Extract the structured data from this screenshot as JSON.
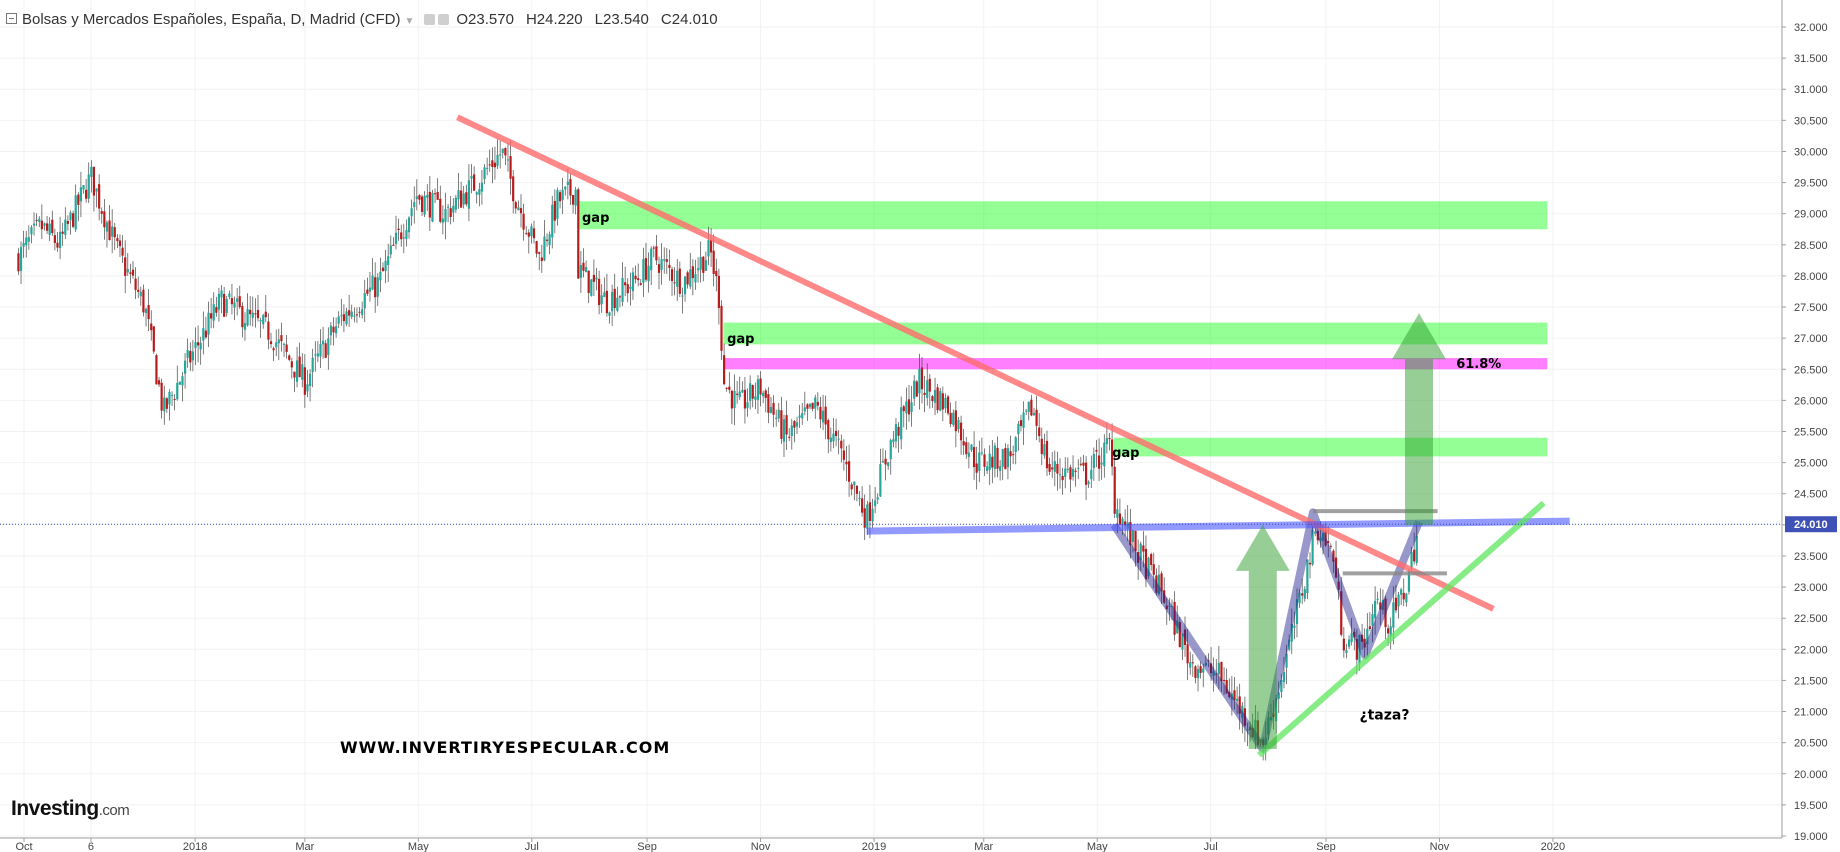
{
  "header": {
    "title": "Bolsas y Mercados Españoles, España, D, Madrid (CFD)",
    "ohlc": [
      "O23.570",
      "H24.220",
      "L23.540",
      "C24.010"
    ]
  },
  "watermark": "WWW.INVERTIRYESPECULAR.COM",
  "logo": {
    "name": "Investing",
    "suffix": ".com"
  },
  "chart_data": {
    "type": "candlestick",
    "y_ticks": [
      "32.000",
      "31.500",
      "31.000",
      "30.500",
      "30.000",
      "29.500",
      "29.000",
      "28.500",
      "28.000",
      "27.500",
      "27.000",
      "26.500",
      "26.000",
      "25.500",
      "25.000",
      "24.500",
      "24.000",
      "23.500",
      "23.000",
      "22.500",
      "22.000",
      "21.500",
      "21.000",
      "20.500",
      "20.000",
      "19.500",
      "19.000"
    ],
    "ylim": [
      19.0,
      32.0
    ],
    "x_ticks": [
      {
        "label": "Oct",
        "date": "2017-10-01"
      },
      {
        "label": "6",
        "date": "2017-11-06"
      },
      {
        "label": "2018",
        "date": "2018-01-01"
      },
      {
        "label": "Mar",
        "date": "2018-03-01"
      },
      {
        "label": "May",
        "date": "2018-05-01"
      },
      {
        "label": "Jul",
        "date": "2018-07-01"
      },
      {
        "label": "Sep",
        "date": "2018-09-01"
      },
      {
        "label": "Nov",
        "date": "2018-11-01"
      },
      {
        "label": "2019",
        "date": "2019-01-01"
      },
      {
        "label": "Mar",
        "date": "2019-03-01"
      },
      {
        "label": "May",
        "date": "2019-05-01"
      },
      {
        "label": "Jul",
        "date": "2019-07-01"
      },
      {
        "label": "Sep",
        "date": "2019-09-01"
      },
      {
        "label": "Nov",
        "date": "2019-11-01"
      },
      {
        "label": "2020",
        "date": "2020-01-01"
      }
    ],
    "last_price": "24.010",
    "price_path": [
      [
        "2017-09-28",
        28.3
      ],
      [
        "2017-10-10",
        28.8
      ],
      [
        "2017-10-20",
        28.5
      ],
      [
        "2017-11-06",
        29.6
      ],
      [
        "2017-11-20",
        28.4
      ],
      [
        "2017-12-05",
        27.5
      ],
      [
        "2017-12-15",
        25.8
      ],
      [
        "2017-12-28",
        26.6
      ],
      [
        "2018-01-15",
        27.6
      ],
      [
        "2018-02-10",
        27.1
      ],
      [
        "2018-03-01",
        26.3
      ],
      [
        "2018-03-20",
        27.3
      ],
      [
        "2018-04-10",
        27.9
      ],
      [
        "2018-04-30",
        29.3
      ],
      [
        "2018-05-15",
        29.0
      ],
      [
        "2018-06-01",
        29.5
      ],
      [
        "2018-06-15",
        30.0
      ],
      [
        "2018-06-22",
        29.3
      ],
      [
        "2018-07-05",
        28.3
      ],
      [
        "2018-07-15",
        29.2
      ],
      [
        "2018-07-25",
        29.4
      ],
      [
        "2018-07-26",
        28.1
      ],
      [
        "2018-08-10",
        27.6
      ],
      [
        "2018-08-25",
        27.9
      ],
      [
        "2018-09-05",
        28.3
      ],
      [
        "2018-09-20",
        27.9
      ],
      [
        "2018-10-05",
        28.4
      ],
      [
        "2018-10-10",
        27.6
      ],
      [
        "2018-10-12",
        26.3
      ],
      [
        "2018-10-20",
        25.9
      ],
      [
        "2018-11-01",
        26.2
      ],
      [
        "2018-11-15",
        25.4
      ],
      [
        "2018-12-01",
        25.9
      ],
      [
        "2018-12-15",
        25.1
      ],
      [
        "2018-12-28",
        24.1
      ],
      [
        "2019-01-10",
        25.3
      ],
      [
        "2019-01-25",
        26.3
      ],
      [
        "2019-02-10",
        25.9
      ],
      [
        "2019-02-25",
        25.0
      ],
      [
        "2019-03-15",
        25.1
      ],
      [
        "2019-03-27",
        25.9
      ],
      [
        "2019-04-05",
        24.9
      ],
      [
        "2019-04-25",
        24.8
      ],
      [
        "2019-05-08",
        25.3
      ],
      [
        "2019-05-10",
        24.4
      ],
      [
        "2019-05-20",
        23.7
      ],
      [
        "2019-06-05",
        22.9
      ],
      [
        "2019-06-20",
        21.8
      ],
      [
        "2019-07-05",
        21.6
      ],
      [
        "2019-07-20",
        20.9
      ],
      [
        "2019-07-29",
        20.5
      ],
      [
        "2019-08-05",
        21.2
      ],
      [
        "2019-08-15",
        22.4
      ],
      [
        "2019-08-27",
        24.0
      ],
      [
        "2019-09-05",
        23.5
      ],
      [
        "2019-09-10",
        22.2
      ],
      [
        "2019-09-20",
        22.0
      ],
      [
        "2019-09-28",
        22.8
      ],
      [
        "2019-10-05",
        22.4
      ],
      [
        "2019-10-14",
        23.0
      ],
      [
        "2019-10-21",
        24.0
      ]
    ],
    "zones": [
      {
        "name": "gap",
        "from": "2018-07-26",
        "y": [
          28.75,
          29.2
        ],
        "color": "#00ff00",
        "opacity": 0.42
      },
      {
        "name": "gap",
        "from": "2018-10-12",
        "y": [
          26.9,
          27.25
        ],
        "color": "#00ff00",
        "opacity": 0.42
      },
      {
        "name": "61.8%",
        "from": "2018-10-12",
        "y": [
          26.5,
          26.68
        ],
        "color": "#ff00ff",
        "opacity": 0.5
      },
      {
        "name": "gap",
        "from": "2019-05-10",
        "y": [
          25.1,
          25.4
        ],
        "color": "#00ff00",
        "opacity": 0.42
      }
    ],
    "zone_end": "2019-12-29",
    "lines": [
      {
        "name": "downtrend",
        "from": [
          "2018-05-22",
          30.55
        ],
        "to": [
          "2019-11-30",
          22.65
        ],
        "color": "#ff6b6b",
        "opacity": 0.8
      },
      {
        "name": "neckline",
        "from": [
          "2018-12-28",
          23.9
        ],
        "to": [
          "2020-01-10",
          24.06
        ],
        "color": "#4b56ff",
        "opacity": 0.6
      },
      {
        "name": "uptrend",
        "from": [
          "2019-07-27",
          20.3
        ],
        "to": [
          "2019-12-27",
          24.35
        ],
        "color": "#5ee65e",
        "opacity": 0.75
      },
      {
        "name": "resistance-top",
        "from": [
          "2019-08-25",
          24.22
        ],
        "to": [
          "2019-10-31",
          24.22
        ],
        "color": "#888888",
        "opacity": 0.8
      },
      {
        "name": "resistance-mid",
        "from": [
          "2019-09-10",
          23.22
        ],
        "to": [
          "2019-11-05",
          23.22
        ],
        "color": "#888888",
        "opacity": 0.8
      }
    ],
    "pattern": [
      [
        "2019-05-10",
        24.0
      ],
      [
        "2019-07-29",
        20.4
      ],
      [
        "2019-08-25",
        24.2
      ],
      [
        "2019-09-22",
        21.9
      ],
      [
        "2019-10-21",
        24.05
      ]
    ],
    "arrows": [
      {
        "date": "2019-07-29",
        "from": 20.4,
        "to": 24.0
      },
      {
        "date": "2019-10-21",
        "from": 24.0,
        "to": 27.4
      }
    ],
    "annotations": [
      {
        "text": "gap",
        "date": "2018-07-28",
        "y": 28.95
      },
      {
        "text": "gap",
        "date": "2018-10-14",
        "y": 27.0
      },
      {
        "text": "gap",
        "date": "2019-05-09",
        "y": 25.17
      },
      {
        "text": "61.8%",
        "date": "2019-11-10",
        "y": 26.6
      },
      {
        "text": "¿taza?",
        "date": "2019-09-19",
        "y": 20.95
      }
    ]
  },
  "colors": {
    "up": "#26a69a",
    "down": "#b71c1c",
    "wick": "#333333",
    "axis_bg": "#ffffff",
    "last_price_bg": "#3f51b5"
  }
}
